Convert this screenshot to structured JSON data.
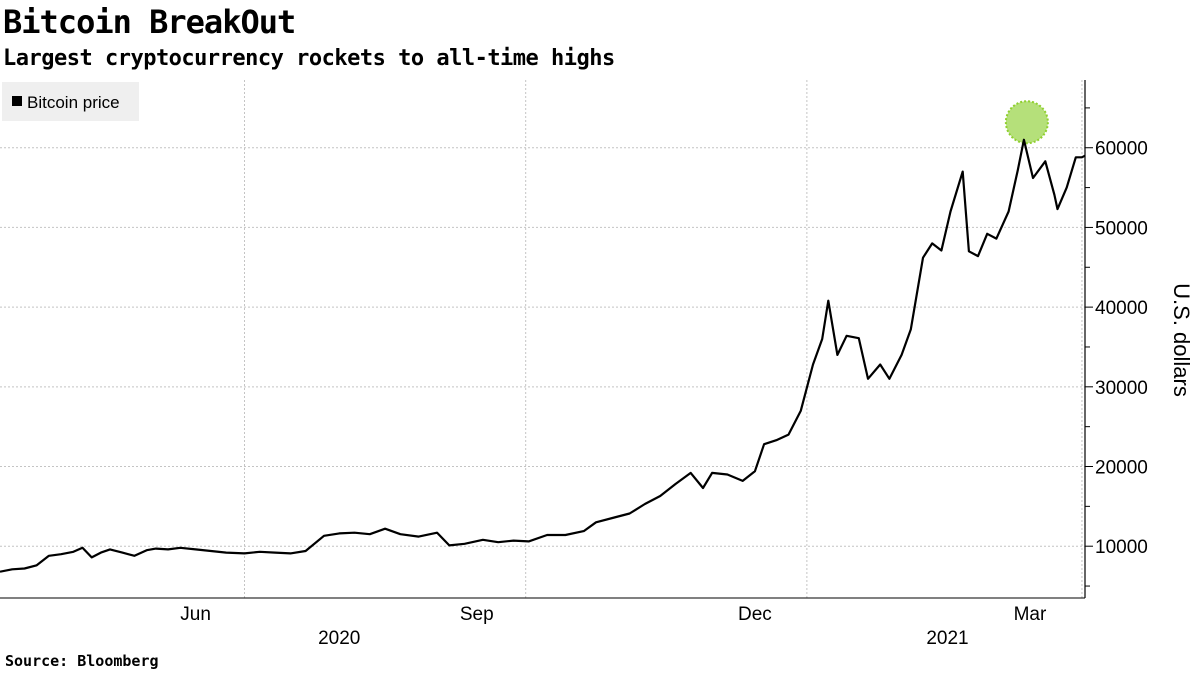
{
  "header": {
    "title": "Bitcoin BreakOut",
    "subtitle": "Largest cryptocurrency rockets to all-time highs"
  },
  "footer": {
    "source": "Source: Bloomberg"
  },
  "chart_data": {
    "type": "line",
    "title": "Bitcoin BreakOut",
    "subtitle": "Largest cryptocurrency rockets to all-time highs",
    "ylabel": "U.S. dollars",
    "xlabel": "",
    "ylim": [
      3500,
      68500
    ],
    "xlim": [
      "2020-04-12",
      "2021-04-02"
    ],
    "yticks": [
      10000,
      20000,
      30000,
      40000,
      50000,
      60000
    ],
    "month_ticks": [
      {
        "label": "Jun",
        "date": "2020-06-15"
      },
      {
        "label": "Sep",
        "date": "2020-09-15"
      },
      {
        "label": "Dec",
        "date": "2020-12-15"
      },
      {
        "label": "Mar",
        "date": "2021-03-15"
      }
    ],
    "year_labels": [
      {
        "label": "2020",
        "date": "2020-08-01"
      },
      {
        "label": "2021",
        "date": "2021-02-16"
      }
    ],
    "grid": true,
    "grid_dates": [
      "2020-07-01",
      "2020-10-01",
      "2021-01-01",
      "2021-04-01"
    ],
    "legend": {
      "position": "top-left",
      "entries": [
        "Bitcoin price"
      ]
    },
    "highlight": {
      "date": "2021-03-13",
      "value": 63200,
      "color": "#b5e07a"
    },
    "series": [
      {
        "name": "Bitcoin price",
        "color": "#000000",
        "x": [
          "2020-04-12",
          "2020-04-16",
          "2020-04-20",
          "2020-04-24",
          "2020-04-28",
          "2020-05-02",
          "2020-05-06",
          "2020-05-09",
          "2020-05-12",
          "2020-05-15",
          "2020-05-18",
          "2020-05-22",
          "2020-05-26",
          "2020-05-30",
          "2020-06-02",
          "2020-06-06",
          "2020-06-10",
          "2020-06-15",
          "2020-06-20",
          "2020-06-25",
          "2020-07-01",
          "2020-07-06",
          "2020-07-11",
          "2020-07-16",
          "2020-07-21",
          "2020-07-27",
          "2020-08-01",
          "2020-08-06",
          "2020-08-11",
          "2020-08-16",
          "2020-08-21",
          "2020-08-27",
          "2020-09-02",
          "2020-09-06",
          "2020-09-11",
          "2020-09-17",
          "2020-09-22",
          "2020-09-27",
          "2020-10-02",
          "2020-10-08",
          "2020-10-14",
          "2020-10-20",
          "2020-10-24",
          "2020-10-30",
          "2020-11-04",
          "2020-11-09",
          "2020-11-14",
          "2020-11-19",
          "2020-11-24",
          "2020-11-28",
          "2020-12-01",
          "2020-12-06",
          "2020-12-11",
          "2020-12-15",
          "2020-12-18",
          "2020-12-22",
          "2020-12-26",
          "2020-12-30",
          "2021-01-03",
          "2021-01-06",
          "2021-01-08",
          "2021-01-11",
          "2021-01-14",
          "2021-01-18",
          "2021-01-21",
          "2021-01-25",
          "2021-01-28",
          "2021-02-01",
          "2021-02-04",
          "2021-02-08",
          "2021-02-11",
          "2021-02-14",
          "2021-02-17",
          "2021-02-21",
          "2021-02-23",
          "2021-02-26",
          "2021-03-01",
          "2021-03-04",
          "2021-03-08",
          "2021-03-11",
          "2021-03-13",
          "2021-03-16",
          "2021-03-20",
          "2021-03-23",
          "2021-03-24",
          "2021-03-27",
          "2021-03-30",
          "2021-04-01",
          "2021-04-02"
        ],
        "values": [
          6800,
          7100,
          7200,
          7600,
          8800,
          9000,
          9300,
          9800,
          8600,
          9200,
          9600,
          9200,
          8800,
          9500,
          9700,
          9600,
          9800,
          9600,
          9400,
          9200,
          9100,
          9300,
          9200,
          9100,
          9400,
          11300,
          11600,
          11700,
          11500,
          12200,
          11500,
          11200,
          11700,
          10100,
          10300,
          10800,
          10500,
          10700,
          10600,
          11400,
          11400,
          11900,
          13000,
          13600,
          14100,
          15300,
          16300,
          17800,
          19200,
          17300,
          19200,
          19000,
          18200,
          19400,
          22800,
          23300,
          24000,
          27000,
          32800,
          36000,
          40800,
          34000,
          36400,
          36100,
          31000,
          32800,
          31000,
          34000,
          37200,
          46200,
          48000,
          47100,
          52000,
          57000,
          47000,
          46400,
          49200,
          48600,
          52000,
          57200,
          61000,
          56200,
          58300,
          54100,
          52300,
          55000,
          58800,
          58800,
          59000
        ]
      }
    ]
  }
}
